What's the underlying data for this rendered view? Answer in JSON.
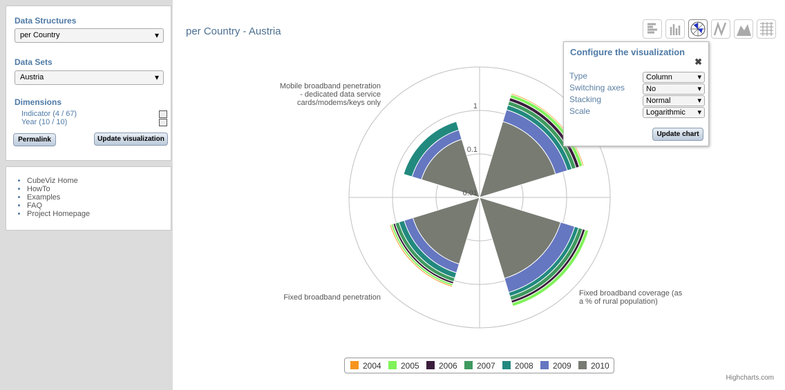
{
  "sidebar": {
    "structures_label": "Data Structures",
    "structures_value": "per Country",
    "datasets_label": "Data Sets",
    "datasets_value": "Austria",
    "dimensions_label": "Dimensions",
    "dimensions": [
      "Indicator (4 / 67)",
      "Year (10 / 10)"
    ],
    "buttons": [
      "Permalink",
      "Update visualization"
    ],
    "links": [
      "CubeViz Home",
      "HowTo",
      "Examples",
      "FAQ",
      "Project Homepage"
    ]
  },
  "title": "per Country - Austria",
  "chart_data": {
    "type": "polar-column",
    "categories": [
      null,
      "Fixed broadband coverage (as a % of rural population)",
      "Fixed broadband penetration",
      "Mobile broadband penetration - dedicated data service cards/modems/keys only"
    ],
    "series": [
      {
        "name": "2004",
        "color": "#f7941d",
        "values": [
          0.2,
          null,
          0.1,
          null
        ]
      },
      {
        "name": "2005",
        "color": "#80f25a",
        "values": [
          0.5,
          0.7,
          0.14,
          null
        ]
      },
      {
        "name": "2006",
        "color": "#3b1d3c",
        "values": [
          0.42,
          0.47,
          0.13,
          null
        ]
      },
      {
        "name": "2007",
        "color": "#3f9a5f",
        "values": [
          0.42,
          0.6,
          0.2,
          null
        ]
      },
      {
        "name": "2008",
        "color": "#22897f",
        "values": [
          0.37,
          0.47,
          0.22,
          0.25
        ]
      },
      {
        "name": "2009",
        "color": "#6577c1",
        "values": [
          0.62,
          1.04,
          0.25,
          0.17
        ]
      },
      {
        "name": "2010",
        "color": "#777b72",
        "values": [
          0.67,
          0.89,
          0.4,
          0.25
        ]
      }
    ],
    "ylim": [
      0.01,
      10
    ],
    "yticks": [
      0.01,
      0.1,
      1
    ],
    "log": true,
    "stacking": "normal",
    "grid": true,
    "legend": "bottom",
    "credits": "Highcharts.com"
  },
  "config": {
    "title": "Configure the visualization",
    "fields": [
      {
        "label": "Type",
        "value": "Column"
      },
      {
        "label": "Switching axes",
        "value": "No"
      },
      {
        "label": "Stacking",
        "value": "Normal"
      },
      {
        "label": "Scale",
        "value": "Logarithmic"
      }
    ],
    "button": "Update chart"
  }
}
